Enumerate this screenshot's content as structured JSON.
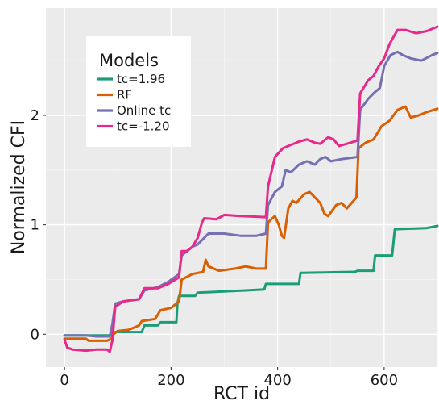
{
  "chart_data": {
    "type": "line",
    "xlabel": "RCT id",
    "ylabel": "Normalized CFI",
    "xlim": [
      -35,
      700
    ],
    "ylim": [
      -0.3,
      2.98
    ],
    "x_ticks": [
      0,
      200,
      400,
      600
    ],
    "y_ticks": [
      0,
      1,
      2
    ],
    "grid": true,
    "legend": {
      "title": "Models",
      "placement": "top-left"
    },
    "series": [
      {
        "name": "tc=1.96",
        "color": "#1b9e77",
        "points": [
          [
            0,
            -0.01
          ],
          [
            85,
            -0.01
          ],
          [
            90,
            0.01
          ],
          [
            95,
            0.02
          ],
          [
            145,
            0.02
          ],
          [
            150,
            0.08
          ],
          [
            175,
            0.08
          ],
          [
            180,
            0.11
          ],
          [
            210,
            0.11
          ],
          [
            212,
            0.28
          ],
          [
            215,
            0.35
          ],
          [
            245,
            0.35
          ],
          [
            250,
            0.38
          ],
          [
            295,
            0.39
          ],
          [
            340,
            0.4
          ],
          [
            375,
            0.41
          ],
          [
            378,
            0.46
          ],
          [
            440,
            0.46
          ],
          [
            443,
            0.56
          ],
          [
            545,
            0.57
          ],
          [
            550,
            0.58
          ],
          [
            580,
            0.58
          ],
          [
            583,
            0.72
          ],
          [
            615,
            0.72
          ],
          [
            620,
            0.96
          ],
          [
            680,
            0.97
          ],
          [
            700,
            0.99
          ]
        ]
      },
      {
        "name": "RF",
        "color": "#d95f02",
        "points": [
          [
            0,
            -0.04
          ],
          [
            40,
            -0.04
          ],
          [
            45,
            -0.06
          ],
          [
            80,
            -0.06
          ],
          [
            88,
            -0.04
          ],
          [
            92,
            0.0
          ],
          [
            100,
            0.03
          ],
          [
            120,
            0.04
          ],
          [
            140,
            0.08
          ],
          [
            145,
            0.12
          ],
          [
            170,
            0.14
          ],
          [
            180,
            0.22
          ],
          [
            200,
            0.24
          ],
          [
            215,
            0.3
          ],
          [
            220,
            0.5
          ],
          [
            240,
            0.55
          ],
          [
            260,
            0.57
          ],
          [
            265,
            0.68
          ],
          [
            270,
            0.62
          ],
          [
            290,
            0.58
          ],
          [
            320,
            0.6
          ],
          [
            340,
            0.62
          ],
          [
            360,
            0.6
          ],
          [
            378,
            0.6
          ],
          [
            382,
            1.02
          ],
          [
            388,
            1.05
          ],
          [
            395,
            1.08
          ],
          [
            402,
            1.0
          ],
          [
            408,
            0.9
          ],
          [
            412,
            0.88
          ],
          [
            420,
            1.15
          ],
          [
            428,
            1.22
          ],
          [
            435,
            1.2
          ],
          [
            450,
            1.28
          ],
          [
            460,
            1.3
          ],
          [
            470,
            1.25
          ],
          [
            480,
            1.2
          ],
          [
            488,
            1.1
          ],
          [
            495,
            1.08
          ],
          [
            510,
            1.18
          ],
          [
            520,
            1.2
          ],
          [
            530,
            1.15
          ],
          [
            548,
            1.25
          ],
          [
            552,
            1.7
          ],
          [
            565,
            1.75
          ],
          [
            580,
            1.78
          ],
          [
            595,
            1.9
          ],
          [
            610,
            1.95
          ],
          [
            625,
            2.05
          ],
          [
            640,
            2.08
          ],
          [
            650,
            1.98
          ],
          [
            665,
            2.0
          ],
          [
            680,
            2.03
          ],
          [
            700,
            2.06
          ]
        ]
      },
      {
        "name": "Online tc",
        "color": "#7570b3",
        "points": [
          [
            0,
            -0.01
          ],
          [
            40,
            -0.01
          ],
          [
            60,
            -0.02
          ],
          [
            85,
            -0.02
          ],
          [
            90,
            0.1
          ],
          [
            95,
            0.28
          ],
          [
            110,
            0.3
          ],
          [
            140,
            0.32
          ],
          [
            150,
            0.4
          ],
          [
            175,
            0.43
          ],
          [
            195,
            0.48
          ],
          [
            215,
            0.55
          ],
          [
            220,
            0.72
          ],
          [
            230,
            0.76
          ],
          [
            240,
            0.8
          ],
          [
            250,
            0.82
          ],
          [
            262,
            0.88
          ],
          [
            270,
            0.92
          ],
          [
            300,
            0.92
          ],
          [
            330,
            0.9
          ],
          [
            360,
            0.9
          ],
          [
            378,
            0.92
          ],
          [
            382,
            1.18
          ],
          [
            395,
            1.3
          ],
          [
            408,
            1.35
          ],
          [
            415,
            1.5
          ],
          [
            425,
            1.48
          ],
          [
            440,
            1.55
          ],
          [
            455,
            1.58
          ],
          [
            470,
            1.55
          ],
          [
            480,
            1.6
          ],
          [
            490,
            1.62
          ],
          [
            500,
            1.58
          ],
          [
            520,
            1.6
          ],
          [
            550,
            1.62
          ],
          [
            555,
            2.05
          ],
          [
            570,
            2.15
          ],
          [
            580,
            2.2
          ],
          [
            592,
            2.25
          ],
          [
            600,
            2.45
          ],
          [
            612,
            2.55
          ],
          [
            625,
            2.58
          ],
          [
            635,
            2.55
          ],
          [
            650,
            2.52
          ],
          [
            670,
            2.5
          ],
          [
            690,
            2.55
          ],
          [
            700,
            2.57
          ]
        ]
      },
      {
        "name": "tc=-1.20",
        "color": "#e7298a",
        "points": [
          [
            0,
            -0.05
          ],
          [
            5,
            -0.12
          ],
          [
            15,
            -0.14
          ],
          [
            40,
            -0.15
          ],
          [
            60,
            -0.14
          ],
          [
            80,
            -0.14
          ],
          [
            85,
            -0.16
          ],
          [
            90,
            -0.05
          ],
          [
            95,
            0.25
          ],
          [
            110,
            0.3
          ],
          [
            140,
            0.32
          ],
          [
            150,
            0.42
          ],
          [
            175,
            0.42
          ],
          [
            195,
            0.46
          ],
          [
            215,
            0.52
          ],
          [
            220,
            0.76
          ],
          [
            230,
            0.76
          ],
          [
            240,
            0.8
          ],
          [
            250,
            0.88
          ],
          [
            258,
            1.02
          ],
          [
            262,
            1.06
          ],
          [
            285,
            1.05
          ],
          [
            300,
            1.09
          ],
          [
            330,
            1.08
          ],
          [
            378,
            1.07
          ],
          [
            382,
            1.35
          ],
          [
            395,
            1.62
          ],
          [
            410,
            1.7
          ],
          [
            420,
            1.72
          ],
          [
            440,
            1.76
          ],
          [
            455,
            1.78
          ],
          [
            470,
            1.75
          ],
          [
            480,
            1.74
          ],
          [
            495,
            1.8
          ],
          [
            505,
            1.78
          ],
          [
            515,
            1.72
          ],
          [
            530,
            1.74
          ],
          [
            550,
            1.77
          ],
          [
            555,
            2.2
          ],
          [
            570,
            2.32
          ],
          [
            580,
            2.36
          ],
          [
            590,
            2.45
          ],
          [
            600,
            2.52
          ],
          [
            610,
            2.65
          ],
          [
            625,
            2.78
          ],
          [
            640,
            2.78
          ],
          [
            660,
            2.75
          ],
          [
            680,
            2.77
          ],
          [
            700,
            2.81
          ]
        ]
      }
    ]
  }
}
